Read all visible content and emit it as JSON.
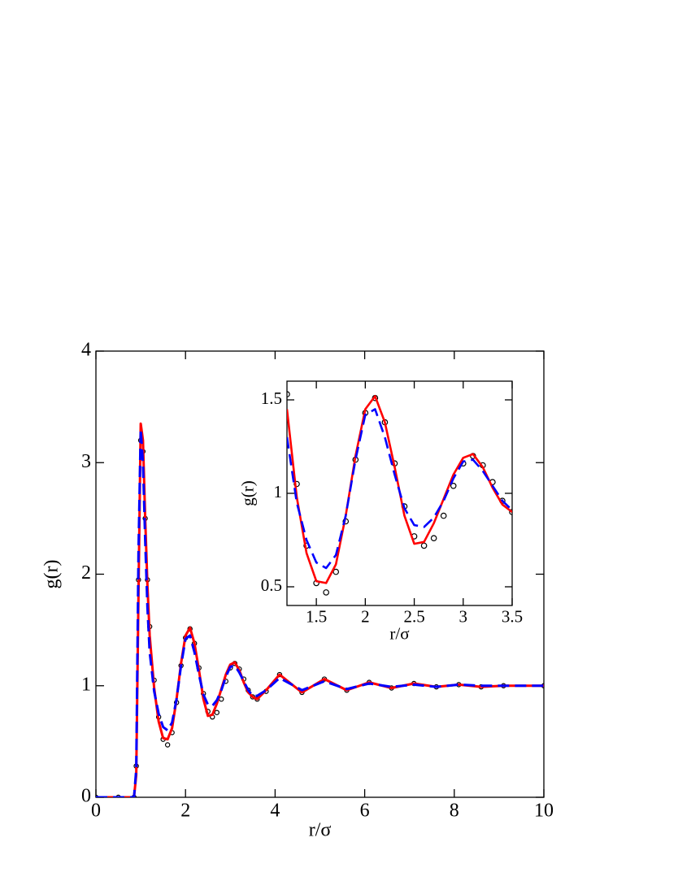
{
  "chart_data": [
    {
      "type": "line",
      "xlabel": "r/σ",
      "ylabel": "g(r)",
      "x": [
        0,
        0.5,
        0.85,
        0.9,
        0.95,
        1.0,
        1.05,
        1.1,
        1.15,
        1.2,
        1.3,
        1.4,
        1.5,
        1.6,
        1.7,
        1.8,
        1.9,
        2.0,
        2.1,
        2.2,
        2.3,
        2.4,
        2.5,
        2.6,
        2.7,
        2.8,
        2.9,
        3.0,
        3.1,
        3.2,
        3.3,
        3.4,
        3.5,
        3.6,
        3.8,
        4.1,
        4.6,
        5.1,
        5.6,
        6.1,
        6.6,
        7.1,
        7.6,
        8.1,
        8.6,
        9.1,
        10
      ],
      "series": [
        {
          "style": "markers",
          "color": "#000000",
          "values": [
            0,
            0,
            0,
            0.28,
            1.95,
            3.2,
            3.1,
            2.5,
            1.95,
            1.53,
            1.05,
            0.72,
            0.52,
            0.47,
            0.58,
            0.85,
            1.18,
            1.43,
            1.51,
            1.38,
            1.16,
            0.93,
            0.77,
            0.72,
            0.76,
            0.88,
            1.04,
            1.16,
            1.2,
            1.15,
            1.06,
            0.96,
            0.9,
            0.88,
            0.95,
            1.1,
            0.94,
            1.06,
            0.96,
            1.03,
            0.98,
            1.02,
            0.99,
            1.01,
            0.99,
            1.0,
            1.0
          ]
        },
        {
          "style": "solid",
          "color": "#ff0000",
          "values": [
            0,
            0,
            0,
            0.2,
            1.8,
            3.35,
            3.2,
            2.5,
            1.9,
            1.45,
            0.98,
            0.68,
            0.53,
            0.52,
            0.62,
            0.88,
            1.2,
            1.45,
            1.52,
            1.38,
            1.14,
            0.88,
            0.73,
            0.74,
            0.84,
            0.97,
            1.1,
            1.19,
            1.21,
            1.14,
            1.03,
            0.94,
            0.9,
            0.88,
            0.96,
            1.1,
            0.94,
            1.06,
            0.96,
            1.03,
            0.98,
            1.02,
            0.99,
            1.01,
            0.99,
            1.0,
            1.0
          ]
        },
        {
          "style": "dashed",
          "color": "#0000ff",
          "values": [
            0,
            0,
            0,
            0.25,
            2.2,
            3.3,
            3.0,
            2.3,
            1.7,
            1.3,
            0.95,
            0.75,
            0.63,
            0.6,
            0.67,
            0.88,
            1.18,
            1.42,
            1.45,
            1.3,
            1.1,
            0.92,
            0.83,
            0.82,
            0.87,
            0.96,
            1.08,
            1.17,
            1.18,
            1.12,
            1.04,
            0.96,
            0.91,
            0.91,
            0.96,
            1.07,
            0.96,
            1.04,
            0.97,
            1.02,
            0.99,
            1.01,
            0.99,
            1.01,
            1.0,
            1.0,
            1.0
          ]
        }
      ],
      "xlim": [
        0,
        10
      ],
      "ylim": [
        0,
        4
      ],
      "xticks": [
        0,
        2,
        4,
        6,
        8,
        10
      ],
      "yticks": [
        0,
        1,
        2,
        3,
        4
      ],
      "grid": false
    },
    {
      "type": "line",
      "xlabel": "r/σ",
      "ylabel": "g(r)",
      "x": [
        1.2,
        1.3,
        1.4,
        1.5,
        1.6,
        1.7,
        1.8,
        1.9,
        2.0,
        2.1,
        2.2,
        2.3,
        2.4,
        2.5,
        2.6,
        2.7,
        2.8,
        2.9,
        3.0,
        3.1,
        3.2,
        3.3,
        3.4,
        3.5
      ],
      "series": [
        {
          "style": "markers",
          "color": "#000000",
          "values": [
            1.53,
            1.05,
            0.72,
            0.52,
            0.47,
            0.58,
            0.85,
            1.18,
            1.43,
            1.51,
            1.38,
            1.16,
            0.93,
            0.77,
            0.72,
            0.76,
            0.88,
            1.04,
            1.16,
            1.2,
            1.15,
            1.06,
            0.96,
            0.9
          ]
        },
        {
          "style": "solid",
          "color": "#ff0000",
          "values": [
            1.45,
            0.98,
            0.68,
            0.53,
            0.52,
            0.62,
            0.88,
            1.2,
            1.45,
            1.52,
            1.38,
            1.14,
            0.88,
            0.73,
            0.74,
            0.84,
            0.97,
            1.1,
            1.19,
            1.21,
            1.14,
            1.03,
            0.94,
            0.9
          ]
        },
        {
          "style": "dashed",
          "color": "#0000ff",
          "values": [
            1.3,
            0.95,
            0.75,
            0.63,
            0.6,
            0.67,
            0.88,
            1.18,
            1.42,
            1.45,
            1.3,
            1.1,
            0.92,
            0.83,
            0.82,
            0.87,
            0.96,
            1.08,
            1.17,
            1.18,
            1.12,
            1.04,
            0.96,
            0.91
          ]
        }
      ],
      "xlim": [
        1.2,
        3.5
      ],
      "ylim": [
        0.4,
        1.6
      ],
      "xticks": [
        1.5,
        2,
        2.5,
        3,
        3.5
      ],
      "yticks": [
        0.5,
        1,
        1.5
      ],
      "grid": false
    }
  ]
}
